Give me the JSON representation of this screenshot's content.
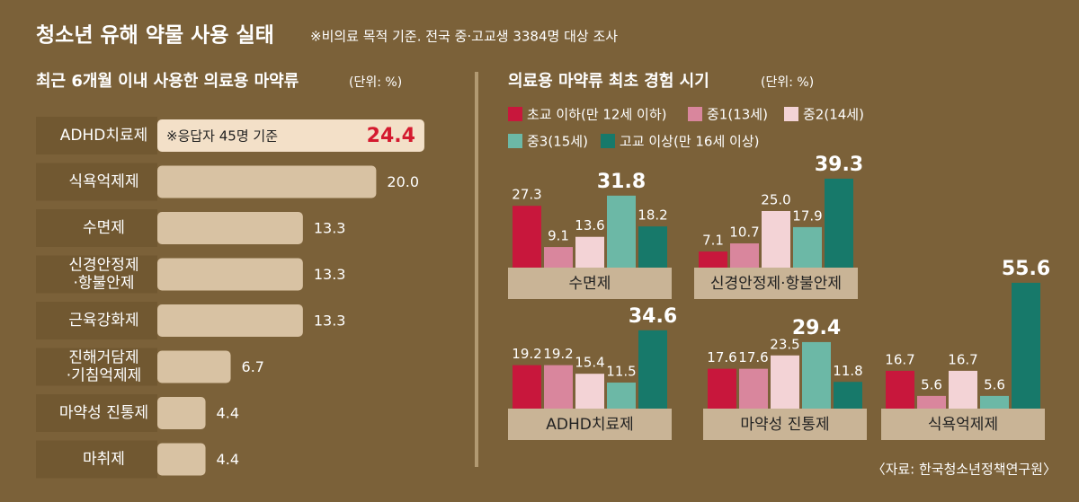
{
  "header": {
    "title": "청소년 유해 약물 사용 실태",
    "note": "※비의료 목적 기준. 전국 중·고교생 3384명 대상 조사"
  },
  "chart_data": [
    {
      "type": "hbar",
      "title": "최근 6개월 이내 사용한 의료용 마약류",
      "unit": "(단위: %)",
      "annotation": "※응답자 45명 기준",
      "categories": [
        "ADHD치료제",
        "식욕억제제",
        "수면제",
        "신경안정제\n·항불안제",
        "근육강화제",
        "진해거담제\n·기침억제제",
        "마약성 진통제",
        "마취제"
      ],
      "values": [
        24.4,
        20.0,
        13.3,
        13.3,
        13.3,
        6.7,
        4.4,
        4.4
      ],
      "value_labels": [
        "24.4",
        "20.0",
        "13.3",
        "13.3",
        "13.3",
        "6.7",
        "4.4",
        "4.4"
      ],
      "color": "#d8c2a3",
      "highlight_color": "#f3e0c8"
    },
    {
      "type": "grouped-bar",
      "title": "의료용 마약류 최초 경험 시기",
      "unit": "(단위: %)",
      "categories": [
        "수면제",
        "신경안정제·항불안제",
        "ADHD치료제",
        "마약성 진통제",
        "식욕억제제"
      ],
      "series": [
        {
          "name": "초교 이하(만 12세 이하)",
          "color": "#c8173c",
          "values": [
            27.3,
            7.1,
            19.2,
            17.6,
            16.7
          ]
        },
        {
          "name": "중1(13세)",
          "color": "#d9869d",
          "values": [
            9.1,
            10.7,
            19.2,
            17.6,
            5.6
          ]
        },
        {
          "name": "중2(14세)",
          "color": "#f3d3d6",
          "values": [
            13.6,
            25.0,
            15.4,
            23.5,
            16.7
          ],
          "value_labels": [
            "13.6",
            "25.0",
            "15.4",
            "23.5",
            "16.7"
          ]
        },
        {
          "name": "중3(15세)",
          "color": "#6cb8a6",
          "values": [
            31.8,
            17.9,
            11.5,
            29.4,
            5.6
          ]
        },
        {
          "name": "고교 이상(만 16세 이상)",
          "color": "#17796a",
          "values": [
            18.2,
            39.3,
            34.6,
            11.8,
            55.6
          ]
        }
      ]
    }
  ],
  "source": "〈자료: 한국청소년정책연구원〉"
}
